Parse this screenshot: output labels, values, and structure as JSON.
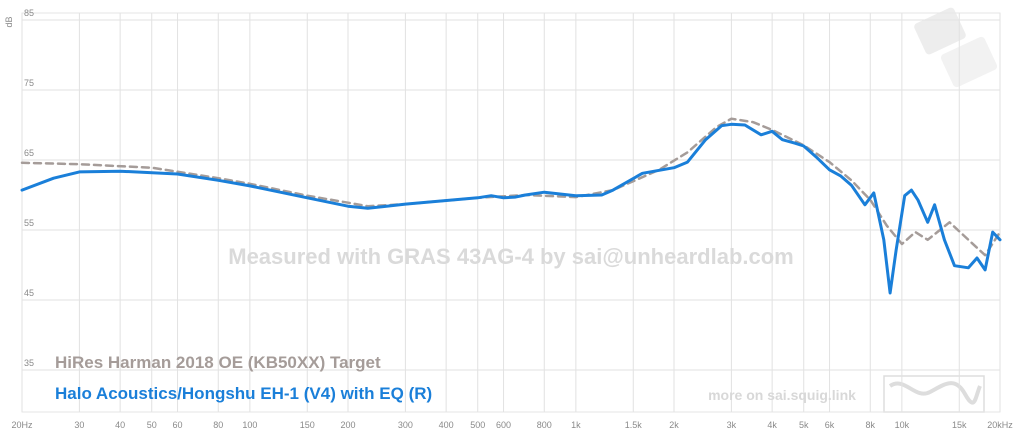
{
  "chart_data": {
    "type": "line",
    "y_label": "dB",
    "xscale": "log",
    "grid": true,
    "xlim": [
      20,
      20000
    ],
    "ylim": [
      29,
      86
    ],
    "yticks": [
      35,
      45,
      55,
      65,
      75,
      85
    ],
    "xticks": [
      {
        "value": 20,
        "label": "20Hz"
      },
      30,
      40,
      50,
      60,
      80,
      100,
      150,
      200,
      300,
      400,
      500,
      600,
      800,
      {
        "value": 1000,
        "label": "1k"
      },
      {
        "value": 1500,
        "label": "1.5k"
      },
      {
        "value": 2000,
        "label": "2k"
      },
      {
        "value": 3000,
        "label": "3k"
      },
      {
        "value": 4000,
        "label": "4k"
      },
      {
        "value": 5000,
        "label": "5k"
      },
      {
        "value": 6000,
        "label": "6k"
      },
      {
        "value": 8000,
        "label": "8k"
      },
      {
        "value": 10000,
        "label": "10k"
      },
      {
        "value": 15000,
        "label": "15k"
      },
      {
        "value": 20000,
        "label": "20kHz"
      }
    ],
    "watermark": "Measured with GRAS 43AG-4 by sai@unheardlab.com",
    "footer": "more on sai.squig.link",
    "series": [
      {
        "name": "HiRes Harman 2018 OE (KB50XX) Target",
        "color": "#a59c99",
        "dashed": true,
        "x": [
          20,
          30,
          50,
          80,
          100,
          150,
          200,
          230,
          300,
          500,
          700,
          1000,
          1300,
          1800,
          2200,
          2700,
          3000,
          3500,
          4000,
          5000,
          6000,
          7000,
          8000,
          9000,
          10000,
          11000,
          12000,
          14000,
          16000,
          18000,
          20000
        ],
        "values": [
          64.6,
          64.4,
          63.9,
          62.4,
          61.6,
          59.9,
          58.9,
          58.4,
          58.7,
          59.6,
          60,
          59.7,
          60.7,
          63.6,
          66.1,
          69.7,
          70.9,
          70.4,
          69.3,
          67.1,
          64.7,
          62.1,
          59.3,
          55.6,
          53,
          54.7,
          53.6,
          56.1,
          53.6,
          51.4,
          54.7
        ]
      },
      {
        "name": "Halo Acoustics/Hongshu EH-1 (V4) with EQ (R)",
        "color": "#1a7fd9",
        "dashed": false,
        "x": [
          20,
          25,
          30,
          40,
          60,
          80,
          100,
          150,
          200,
          230,
          300,
          500,
          550,
          600,
          650,
          700,
          800,
          1000,
          1200,
          1300,
          1600,
          2000,
          2200,
          2500,
          2800,
          3000,
          3300,
          3700,
          4000,
          4300,
          4700,
          5000,
          5500,
          6000,
          6500,
          7000,
          7700,
          8200,
          8800,
          9200,
          9600,
          10200,
          10700,
          11200,
          12000,
          12600,
          13500,
          14500,
          16000,
          17000,
          18000,
          19000,
          20000
        ],
        "values": [
          60.7,
          62.4,
          63.3,
          63.4,
          63,
          62.1,
          61.3,
          59.6,
          58.4,
          58.1,
          58.7,
          59.6,
          59.9,
          59.6,
          59.7,
          60,
          60.4,
          59.9,
          60,
          60.7,
          63.1,
          63.9,
          64.7,
          67.9,
          69.9,
          70.1,
          70,
          68.6,
          69.1,
          67.9,
          67.4,
          67,
          65.3,
          63.6,
          62.7,
          61.4,
          58.6,
          60.3,
          53.6,
          46,
          52.1,
          59.9,
          60.7,
          59.3,
          56.1,
          58.6,
          53.6,
          49.9,
          49.6,
          51,
          49.3,
          54.7,
          53.6
        ]
      }
    ]
  }
}
